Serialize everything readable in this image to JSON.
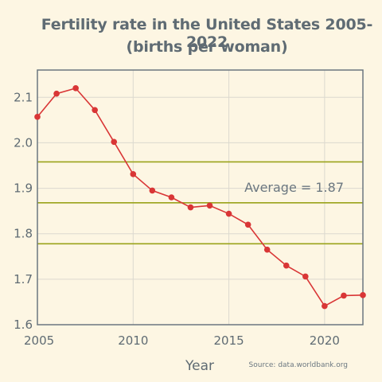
{
  "chart_data": {
    "type": "line",
    "title": "Fertility rate in the United States 2005-2022",
    "subtitle": "(births per woman)",
    "xlabel": "Year",
    "ylabel": "",
    "source": "Source: data.worldbank.org",
    "annotation": "Average = 1.87",
    "xlim": [
      2005,
      2022
    ],
    "ylim": [
      1.6,
      2.16
    ],
    "x_ticks": [
      2005,
      2010,
      2015,
      2020
    ],
    "y_ticks": [
      1.6,
      1.7,
      1.8,
      1.9,
      2.0,
      2.1
    ],
    "grid": true,
    "series": [
      {
        "x": [
          2005,
          2006,
          2007,
          2008,
          2009,
          2010,
          2011,
          2012,
          2013,
          2014,
          2015,
          2016,
          2017,
          2018,
          2019,
          2020,
          2021,
          2022
        ],
        "values": [
          2.057,
          2.108,
          2.12,
          2.072,
          2.002,
          1.931,
          1.895,
          1.88,
          1.858,
          1.862,
          1.844,
          1.82,
          1.765,
          1.73,
          1.706,
          1.641,
          1.664,
          1.665
        ],
        "color": "#d93636"
      }
    ],
    "reference_lines": [
      {
        "y": 1.958,
        "color": "#9aa31a"
      },
      {
        "y": 1.868,
        "color": "#9aa31a"
      },
      {
        "y": 1.778,
        "color": "#9aa31a"
      }
    ],
    "colors": {
      "background": "#fdf6e3",
      "axes": "#6b7780",
      "grid": "#dcd9cf"
    }
  }
}
